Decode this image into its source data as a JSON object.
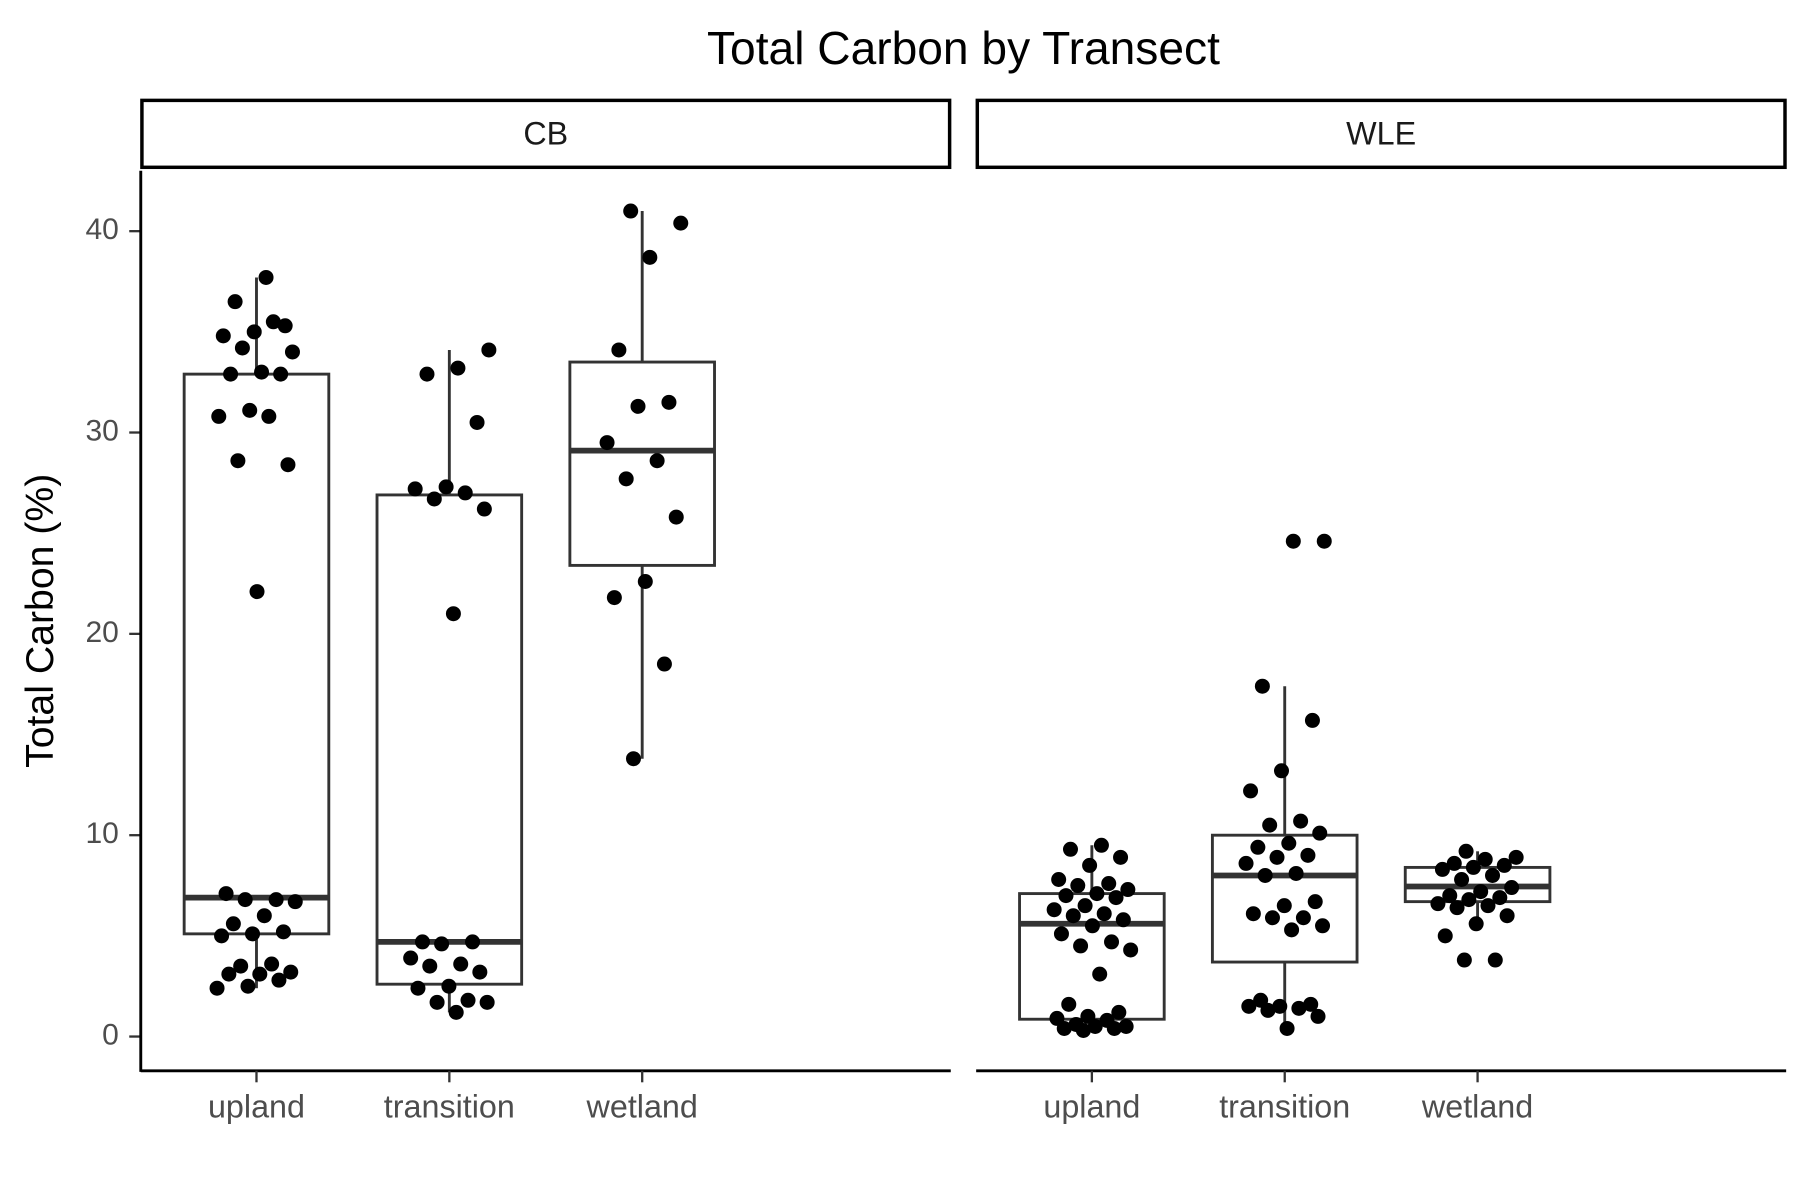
{
  "chart_data": {
    "type": "box",
    "title": "Total Carbon by Transect",
    "y_label": "Total Carbon (%)",
    "ylim": [
      -1.7,
      43.0
    ],
    "yticks": [
      0,
      10,
      20,
      30,
      40
    ],
    "categories": [
      "upland",
      "transition",
      "wetland"
    ],
    "facets": [
      {
        "name": "CB",
        "boxes": [
          {
            "min": 2.4,
            "q1": 5.1,
            "median": 6.9,
            "q3": 32.9,
            "max": 37.7,
            "points": [
              37.7,
              36.5,
              35.3,
              35.0,
              34.8,
              35.5,
              34.2,
              34.0,
              33.0,
              32.9,
              32.9,
              31.1,
              30.8,
              30.8,
              28.6,
              28.4,
              22.1,
              7.1,
              6.8,
              6.8,
              6.7,
              6.0,
              5.6,
              5.2,
              5.1,
              5.0,
              3.6,
              3.5,
              3.2,
              3.1,
              3.1,
              2.8,
              2.5,
              2.4
            ]
          },
          {
            "min": 1.2,
            "q1": 2.6,
            "median": 4.7,
            "q3": 26.9,
            "max": 34.1,
            "points": [
              34.1,
              33.2,
              32.9,
              30.5,
              27.3,
              27.2,
              27.0,
              26.7,
              26.2,
              21.0,
              4.7,
              4.7,
              4.6,
              3.9,
              3.6,
              3.5,
              3.2,
              2.5,
              2.4,
              1.8,
              1.7,
              1.7,
              1.2
            ]
          },
          {
            "min": 13.8,
            "q1": 23.4,
            "median": 29.1,
            "q3": 33.5,
            "max": 41.0,
            "points": [
              41.0,
              40.4,
              38.7,
              34.1,
              31.5,
              31.3,
              29.5,
              28.6,
              27.7,
              25.8,
              22.6,
              21.8,
              18.5,
              13.8
            ]
          }
        ]
      },
      {
        "name": "WLE",
        "boxes": [
          {
            "min": 0.3,
            "q1": 0.86,
            "median": 5.6,
            "q3": 7.1,
            "max": 9.5,
            "points": [
              9.5,
              9.3,
              8.9,
              8.5,
              7.8,
              7.6,
              7.5,
              7.3,
              7.1,
              7.0,
              6.9,
              6.5,
              6.3,
              6.1,
              6.0,
              5.8,
              5.5,
              5.1,
              4.7,
              4.5,
              4.3,
              3.1,
              1.6,
              1.2,
              1.0,
              0.9,
              0.8,
              0.6,
              0.5,
              0.5,
              0.4,
              0.4,
              0.3
            ]
          },
          {
            "min": 0.4,
            "q1": 3.7,
            "median": 8.0,
            "q3": 10.0,
            "max": 17.4,
            "points": [
              24.6,
              24.6,
              17.4,
              15.7,
              13.2,
              12.2,
              10.7,
              10.5,
              10.1,
              9.6,
              9.4,
              9.0,
              8.9,
              8.6,
              8.1,
              8.0,
              6.7,
              6.5,
              6.1,
              5.9,
              5.9,
              5.5,
              5.3,
              1.8,
              1.6,
              1.5,
              1.5,
              1.4,
              1.3,
              1.0,
              0.4
            ]
          },
          {
            "min": 5.6,
            "q1": 6.7,
            "median": 7.45,
            "q3": 8.4,
            "max": 9.2,
            "points": [
              9.2,
              8.9,
              8.8,
              8.6,
              8.5,
              8.4,
              8.3,
              8.0,
              7.8,
              7.4,
              7.2,
              7.0,
              6.9,
              6.8,
              6.6,
              6.5,
              6.4,
              6.0,
              5.6,
              5.0,
              3.8,
              3.8
            ]
          }
        ]
      }
    ]
  }
}
